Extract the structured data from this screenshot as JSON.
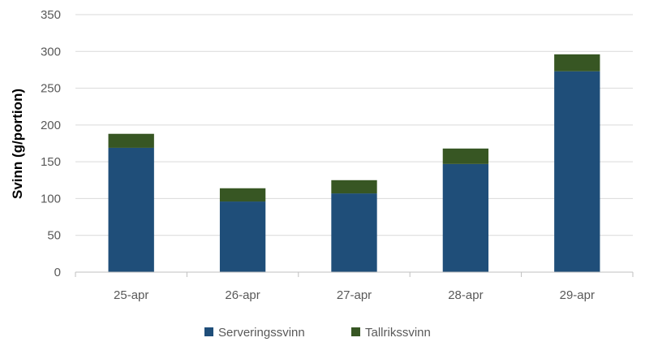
{
  "chart_data": {
    "type": "bar",
    "stacked": true,
    "categories": [
      "25-apr",
      "26-apr",
      "27-apr",
      "28-apr",
      "29-apr"
    ],
    "series": [
      {
        "name": "Serveringssvinn",
        "values": [
          169,
          96,
          107,
          147,
          273
        ],
        "color": "#1f4e79"
      },
      {
        "name": "Tallrikssvinn",
        "values": [
          19,
          18,
          18,
          21,
          23
        ],
        "color": "#375623"
      }
    ],
    "title": "",
    "xlabel": "",
    "ylabel": "Svinn (g/portion)",
    "ylim": [
      0,
      350
    ],
    "yticks": [
      0,
      50,
      100,
      150,
      200,
      250,
      300,
      350
    ],
    "grid": true,
    "legend": "bottom"
  }
}
